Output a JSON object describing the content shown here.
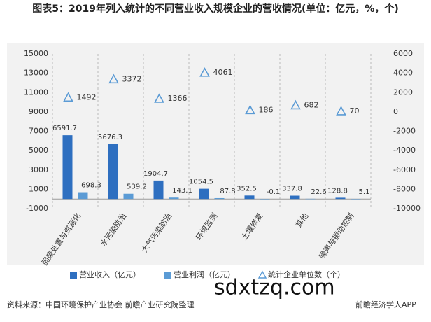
{
  "chart_data": {
    "type": "bar",
    "title": "图表5：2019年列入统计的不同营业收入规模企业的营收情况(单位：亿元，%，个)",
    "categories": [
      "固废处置与资源化",
      "水污染防治",
      "大气污染防治",
      "环境监测",
      "土壤修复",
      "其他",
      "噪声与振动控制"
    ],
    "series": [
      {
        "name": "营业收入（亿元）",
        "color": "#2e6fc0",
        "values": [
          6591.7,
          5676.3,
          1904.7,
          1054.5,
          352.5,
          337.8,
          128.8
        ]
      },
      {
        "name": "营业利润（亿元）",
        "color": "#5b9bd5",
        "values": [
          698.3,
          539.2,
          143.1,
          87.8,
          -0.1,
          22.6,
          5.1
        ]
      },
      {
        "name": "统计企业单位数（个）",
        "color": "#5b9bd5",
        "axis": "y2",
        "marker": "triangle",
        "values": [
          1492,
          3372,
          1366,
          4061,
          186,
          682,
          70
        ]
      }
    ],
    "ylim": [
      -1000,
      15000
    ],
    "yticks": [
      -1000,
      1000,
      3000,
      5000,
      7000,
      9000,
      11000,
      13000,
      15000
    ],
    "y2lim": [
      -10000,
      6000
    ],
    "y2ticks": [
      -10000,
      -8000,
      -6000,
      -4000,
      -2000,
      0,
      2000,
      4000,
      6000
    ],
    "grid": false,
    "source": "资料来源：中国环境保护产业协会 前瞻产业研究院整理",
    "watermark": "sdxtzq.com",
    "brand": "前瞻经济学人APP"
  }
}
